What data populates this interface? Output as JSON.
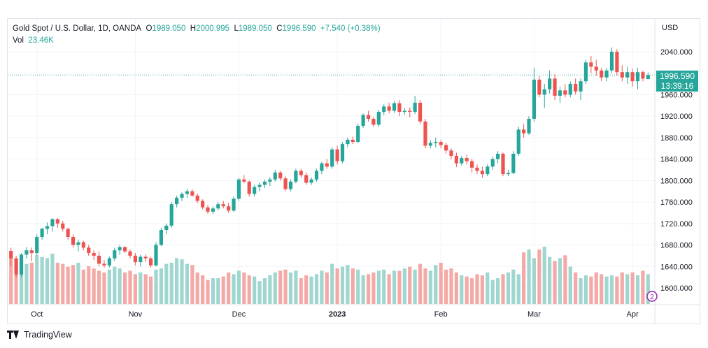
{
  "header": {
    "symbol": "Gold Spot / U.S. Dollar, 1D, OANDA",
    "open_label": "O",
    "open": "1989.050",
    "high_label": "H",
    "high": "2000.995",
    "low_label": "L",
    "low": "1989.050",
    "close_label": "C",
    "close": "1996.590",
    "change": "+7.540 (+0.38%)",
    "vol_label": "Vol",
    "vol": "23.46K",
    "currency": "USD"
  },
  "price_tag": {
    "price": "1996.590",
    "countdown": "13:39:16"
  },
  "brand": {
    "name": "TradingView"
  },
  "colors": {
    "up": "#26a69a",
    "down": "#ef5350",
    "vol_up": "#9fd6d0",
    "vol_down": "#f4a9a7"
  },
  "chart_data": {
    "type": "candlestick",
    "y_ticks": [
      "2040.000",
      "2000.000",
      "1960.000",
      "1920.000",
      "1880.000",
      "1840.000",
      "1800.000",
      "1760.000",
      "1720.000",
      "1680.000",
      "1640.000",
      "1600.000"
    ],
    "x_ticks": [
      "Oct",
      "Nov",
      "Dec",
      "2023",
      "Feb",
      "Mar",
      "Apr"
    ],
    "current_price": 1996.59,
    "candles": [
      [
        1669,
        1675,
        1640,
        1655
      ],
      [
        1655,
        1660,
        1620,
        1625
      ],
      [
        1625,
        1665,
        1620,
        1662
      ],
      [
        1662,
        1676,
        1655,
        1670
      ],
      [
        1670,
        1675,
        1650,
        1665
      ],
      [
        1665,
        1700,
        1660,
        1695
      ],
      [
        1695,
        1712,
        1690,
        1710
      ],
      [
        1710,
        1722,
        1700,
        1715
      ],
      [
        1715,
        1730,
        1705,
        1728
      ],
      [
        1728,
        1730,
        1712,
        1720
      ],
      [
        1720,
        1725,
        1705,
        1710
      ],
      [
        1710,
        1712,
        1690,
        1695
      ],
      [
        1695,
        1700,
        1675,
        1680
      ],
      [
        1680,
        1690,
        1668,
        1685
      ],
      [
        1685,
        1688,
        1670,
        1675
      ],
      [
        1675,
        1680,
        1660,
        1665
      ],
      [
        1665,
        1670,
        1652,
        1660
      ],
      [
        1660,
        1668,
        1640,
        1645
      ],
      [
        1645,
        1652,
        1638,
        1642
      ],
      [
        1642,
        1658,
        1638,
        1655
      ],
      [
        1655,
        1675,
        1650,
        1670
      ],
      [
        1670,
        1680,
        1662,
        1676
      ],
      [
        1676,
        1678,
        1665,
        1668
      ],
      [
        1668,
        1672,
        1655,
        1660
      ],
      [
        1660,
        1665,
        1642,
        1648
      ],
      [
        1648,
        1662,
        1640,
        1658
      ],
      [
        1658,
        1662,
        1648,
        1655
      ],
      [
        1655,
        1658,
        1638,
        1642
      ],
      [
        1642,
        1685,
        1640,
        1680
      ],
      [
        1680,
        1712,
        1678,
        1708
      ],
      [
        1708,
        1720,
        1700,
        1716
      ],
      [
        1716,
        1760,
        1712,
        1756
      ],
      [
        1756,
        1772,
        1750,
        1768
      ],
      [
        1768,
        1778,
        1762,
        1775
      ],
      [
        1775,
        1785,
        1768,
        1780
      ],
      [
        1780,
        1784,
        1770,
        1772
      ],
      [
        1772,
        1776,
        1758,
        1762
      ],
      [
        1762,
        1765,
        1746,
        1750
      ],
      [
        1750,
        1755,
        1738,
        1742
      ],
      [
        1742,
        1752,
        1738,
        1748
      ],
      [
        1748,
        1760,
        1744,
        1756
      ],
      [
        1756,
        1762,
        1748,
        1752
      ],
      [
        1752,
        1758,
        1740,
        1744
      ],
      [
        1744,
        1770,
        1742,
        1766
      ],
      [
        1766,
        1805,
        1762,
        1802
      ],
      [
        1802,
        1810,
        1795,
        1798
      ],
      [
        1798,
        1800,
        1770,
        1775
      ],
      [
        1775,
        1792,
        1770,
        1788
      ],
      [
        1788,
        1796,
        1780,
        1792
      ],
      [
        1792,
        1802,
        1786,
        1798
      ],
      [
        1798,
        1806,
        1790,
        1802
      ],
      [
        1802,
        1820,
        1798,
        1815
      ],
      [
        1815,
        1818,
        1800,
        1804
      ],
      [
        1804,
        1808,
        1780,
        1784
      ],
      [
        1784,
        1802,
        1780,
        1798
      ],
      [
        1798,
        1822,
        1795,
        1818
      ],
      [
        1818,
        1822,
        1805,
        1810
      ],
      [
        1810,
        1815,
        1792,
        1796
      ],
      [
        1796,
        1806,
        1792,
        1802
      ],
      [
        1802,
        1822,
        1798,
        1818
      ],
      [
        1818,
        1835,
        1812,
        1832
      ],
      [
        1832,
        1840,
        1822,
        1826
      ],
      [
        1826,
        1862,
        1822,
        1858
      ],
      [
        1858,
        1865,
        1830,
        1836
      ],
      [
        1836,
        1872,
        1832,
        1868
      ],
      [
        1868,
        1880,
        1862,
        1876
      ],
      [
        1876,
        1882,
        1868,
        1872
      ],
      [
        1872,
        1906,
        1870,
        1902
      ],
      [
        1902,
        1925,
        1898,
        1922
      ],
      [
        1922,
        1930,
        1910,
        1915
      ],
      [
        1915,
        1918,
        1900,
        1904
      ],
      [
        1904,
        1932,
        1900,
        1928
      ],
      [
        1928,
        1942,
        1922,
        1938
      ],
      [
        1938,
        1945,
        1925,
        1930
      ],
      [
        1930,
        1948,
        1926,
        1944
      ],
      [
        1944,
        1950,
        1920,
        1928
      ],
      [
        1928,
        1935,
        1922,
        1930
      ],
      [
        1930,
        1936,
        1918,
        1928
      ],
      [
        1928,
        1958,
        1924,
        1945
      ],
      [
        1945,
        1950,
        1905,
        1910
      ],
      [
        1910,
        1915,
        1860,
        1865
      ],
      [
        1865,
        1875,
        1860,
        1870
      ],
      [
        1870,
        1880,
        1862,
        1872
      ],
      [
        1872,
        1876,
        1860,
        1866
      ],
      [
        1866,
        1870,
        1850,
        1856
      ],
      [
        1856,
        1860,
        1840,
        1846
      ],
      [
        1846,
        1852,
        1825,
        1832
      ],
      [
        1832,
        1846,
        1828,
        1842
      ],
      [
        1842,
        1848,
        1830,
        1836
      ],
      [
        1836,
        1840,
        1815,
        1824
      ],
      [
        1824,
        1830,
        1812,
        1818
      ],
      [
        1818,
        1826,
        1805,
        1812
      ],
      [
        1812,
        1830,
        1808,
        1826
      ],
      [
        1826,
        1845,
        1820,
        1840
      ],
      [
        1840,
        1855,
        1832,
        1850
      ],
      [
        1850,
        1852,
        1808,
        1812
      ],
      [
        1812,
        1820,
        1808,
        1814
      ],
      [
        1814,
        1855,
        1812,
        1850
      ],
      [
        1850,
        1900,
        1846,
        1895
      ],
      [
        1895,
        1905,
        1880,
        1888
      ],
      [
        1888,
        1920,
        1885,
        1915
      ],
      [
        1915,
        2010,
        1910,
        1988
      ],
      [
        1988,
        1995,
        1955,
        1960
      ],
      [
        1960,
        1980,
        1935,
        1970
      ],
      [
        1970,
        2005,
        1962,
        1990
      ],
      [
        1990,
        1998,
        1950,
        1958
      ],
      [
        1958,
        1975,
        1945,
        1968
      ],
      [
        1968,
        1980,
        1955,
        1960
      ],
      [
        1960,
        1985,
        1955,
        1980
      ],
      [
        1980,
        1990,
        1960,
        1966
      ],
      [
        1966,
        1990,
        1950,
        1985
      ],
      [
        1985,
        2025,
        1980,
        2020
      ],
      [
        2020,
        2032,
        2000,
        2012
      ],
      [
        2012,
        2025,
        1995,
        2005
      ],
      [
        2005,
        2010,
        1985,
        1992
      ],
      [
        1992,
        2010,
        1985,
        2005
      ],
      [
        2005,
        2048,
        2000,
        2040
      ],
      [
        2040,
        2045,
        1995,
        2002
      ],
      [
        2002,
        2015,
        1985,
        1992
      ],
      [
        1992,
        2012,
        1980,
        2002
      ],
      [
        2002,
        2008,
        1975,
        1985
      ],
      [
        1985,
        2010,
        1970,
        2002
      ],
      [
        2002,
        2005,
        1985,
        1990
      ],
      [
        1989.05,
        2000.995,
        1989.05,
        1996.59
      ]
    ],
    "volumes": [
      80,
      75,
      78,
      70,
      72,
      85,
      82,
      80,
      88,
      72,
      70,
      65,
      68,
      72,
      60,
      66,
      62,
      58,
      55,
      60,
      65,
      62,
      55,
      58,
      52,
      55,
      52,
      48,
      60,
      62,
      70,
      72,
      80,
      78,
      70,
      68,
      55,
      50,
      42,
      45,
      45,
      48,
      55,
      52,
      58,
      55,
      50,
      48,
      40,
      45,
      50,
      55,
      58,
      60,
      55,
      58,
      45,
      50,
      48,
      52,
      58,
      55,
      70,
      62,
      65,
      68,
      62,
      60,
      50,
      52,
      55,
      58,
      60,
      52,
      58,
      58,
      62,
      65,
      60,
      70,
      62,
      58,
      68,
      72,
      60,
      62,
      55,
      50,
      48,
      45,
      52,
      50,
      55,
      42,
      45,
      52,
      55,
      60,
      52,
      90,
      95,
      80,
      95,
      100,
      82,
      75,
      80,
      85,
      65,
      55,
      45,
      50,
      48,
      55,
      52,
      48,
      50,
      48,
      55,
      52,
      55,
      50,
      58,
      52
    ]
  }
}
